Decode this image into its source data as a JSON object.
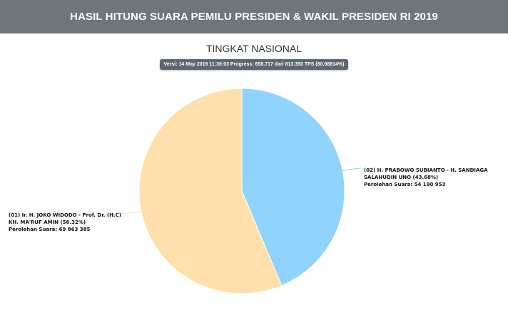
{
  "header": {
    "title": "HASIL HITUNG SUARA PEMILU PRESIDEN & WAKIL PRESIDEN RI 2019"
  },
  "subtitle": "TINGKAT NASIONAL",
  "version_text": "Versi: 14 May 2019 11:30:03 Progress: 658.717 dari 813.350 TPS (80.98814%)",
  "chart_data": {
    "type": "pie",
    "title": "TINGKAT NASIONAL",
    "slices": [
      {
        "label_line1": "(02) H. PRABOWO SUBIANTO - H. SANDIAGA",
        "label_line2": "SALAHUDIN UNO (43.68%)",
        "votes_text": "Perolehan Suara: 54 190 953",
        "percent": 43.68,
        "votes": 54190953,
        "color": "#90d3fc"
      },
      {
        "label_line1": "(01) Ir. H. JOKO WIDODO - Prof. Dr. (H.C)",
        "label_line2": "KH. MA'RUF AMIN (56.32%)",
        "votes_text": "Perolehan Suara: 69 863 385",
        "percent": 56.32,
        "votes": 69863385,
        "color": "#ffe0ac"
      }
    ]
  }
}
